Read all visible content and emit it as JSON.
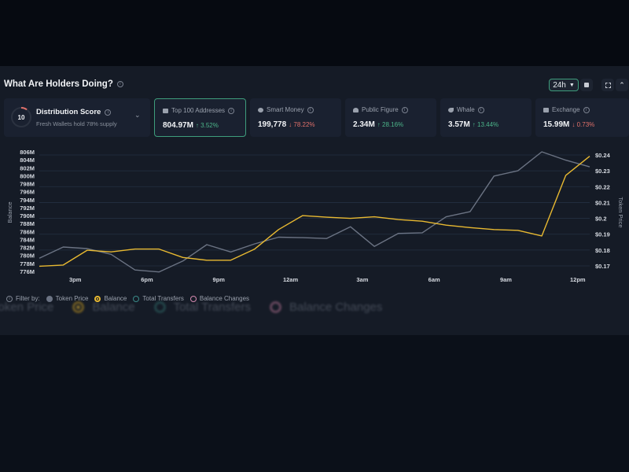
{
  "header": {
    "title": "What Are Holders Doing?",
    "timeframe": "24h"
  },
  "distribution": {
    "score": "10",
    "label": "Distribution Score",
    "subtitle": "Fresh Wallets hold 78% supply",
    "score_fraction": 0.1
  },
  "cards": [
    {
      "label": "Top 100 Addresses",
      "icon": "id-card-icon",
      "value": "804.97M",
      "change": "↑ 3.52%",
      "direction": "up",
      "selected": true
    },
    {
      "label": "Smart Money",
      "icon": "brain-icon",
      "value": "199,778",
      "change": "↓ 78.22%",
      "direction": "down"
    },
    {
      "label": "Public Figure",
      "icon": "person-icon",
      "value": "2.34M",
      "change": "↑ 28.16%",
      "direction": "up"
    },
    {
      "label": "Whale",
      "icon": "whale-icon",
      "value": "3.57M",
      "change": "↑ 13.44%",
      "direction": "up"
    },
    {
      "label": "Exchange",
      "icon": "bank-icon",
      "value": "15.99M",
      "change": "↓ 0.73%",
      "direction": "down"
    }
  ],
  "legend": {
    "filter_label": "Filter by:",
    "items": [
      "Token Price",
      "Balance",
      "Total Transfers",
      "Balance Changes"
    ]
  },
  "colors": {
    "balance": "#e8b931",
    "token_price": "#6b7383",
    "total_transfers": "#3a8a88",
    "balance_changes": "#d58ab0",
    "accent": "#3e9d7c",
    "up": "#4cb58a",
    "down": "#e0706a"
  },
  "chart_data": {
    "type": "line",
    "x": [
      "1:30pm",
      "2:30pm",
      "3:30pm",
      "4:30pm",
      "5:30pm",
      "6:30pm",
      "7:30pm",
      "8:30pm",
      "9:30pm",
      "10:30pm",
      "11:30pm",
      "12:30am",
      "1:30am",
      "2:30am",
      "3:30am",
      "4:30am",
      "5:30am",
      "6:30am",
      "7:30am",
      "8:30am",
      "9:30am",
      "10:30am",
      "11:30am",
      "12:30pm"
    ],
    "x_ticks": [
      "3pm",
      "6pm",
      "9pm",
      "12am",
      "3am",
      "6am",
      "9am",
      "12pm"
    ],
    "ylabel": "Balance",
    "y2label": "Token Price",
    "y_ticks": [
      "776M",
      "778M",
      "780M",
      "782M",
      "784M",
      "786M",
      "788M",
      "790M",
      "792M",
      "794M",
      "796M",
      "798M",
      "800M",
      "802M",
      "804M",
      "806M"
    ],
    "y2_ticks": [
      "$0.17",
      "$0.18",
      "$0.19",
      "$0.2",
      "$0.21",
      "$0.22",
      "$0.23",
      "$0.24"
    ],
    "ylim": [
      776,
      806
    ],
    "y2lim": [
      0.17,
      0.24
    ],
    "grid": true,
    "series": [
      {
        "name": "Balance",
        "axis": "left",
        "values": [
          777.3,
          777.6,
          781.3,
          780.9,
          781.6,
          781.6,
          779.5,
          778.8,
          778.8,
          781.6,
          786.5,
          790.0,
          789.6,
          789.3,
          789.7,
          789.0,
          788.6,
          787.6,
          787.0,
          786.5,
          786.3,
          784.9,
          800.1,
          804.9
        ]
      },
      {
        "name": "Token Price",
        "axis": "right",
        "values": [
          0.1748,
          0.1819,
          0.1809,
          0.1773,
          0.1674,
          0.1662,
          0.1731,
          0.1834,
          0.1788,
          0.1839,
          0.1881,
          0.1878,
          0.1873,
          0.1947,
          0.1823,
          0.1905,
          0.1909,
          0.201,
          0.2042,
          0.2267,
          0.23,
          0.242,
          0.2367,
          0.2325
        ]
      }
    ]
  }
}
